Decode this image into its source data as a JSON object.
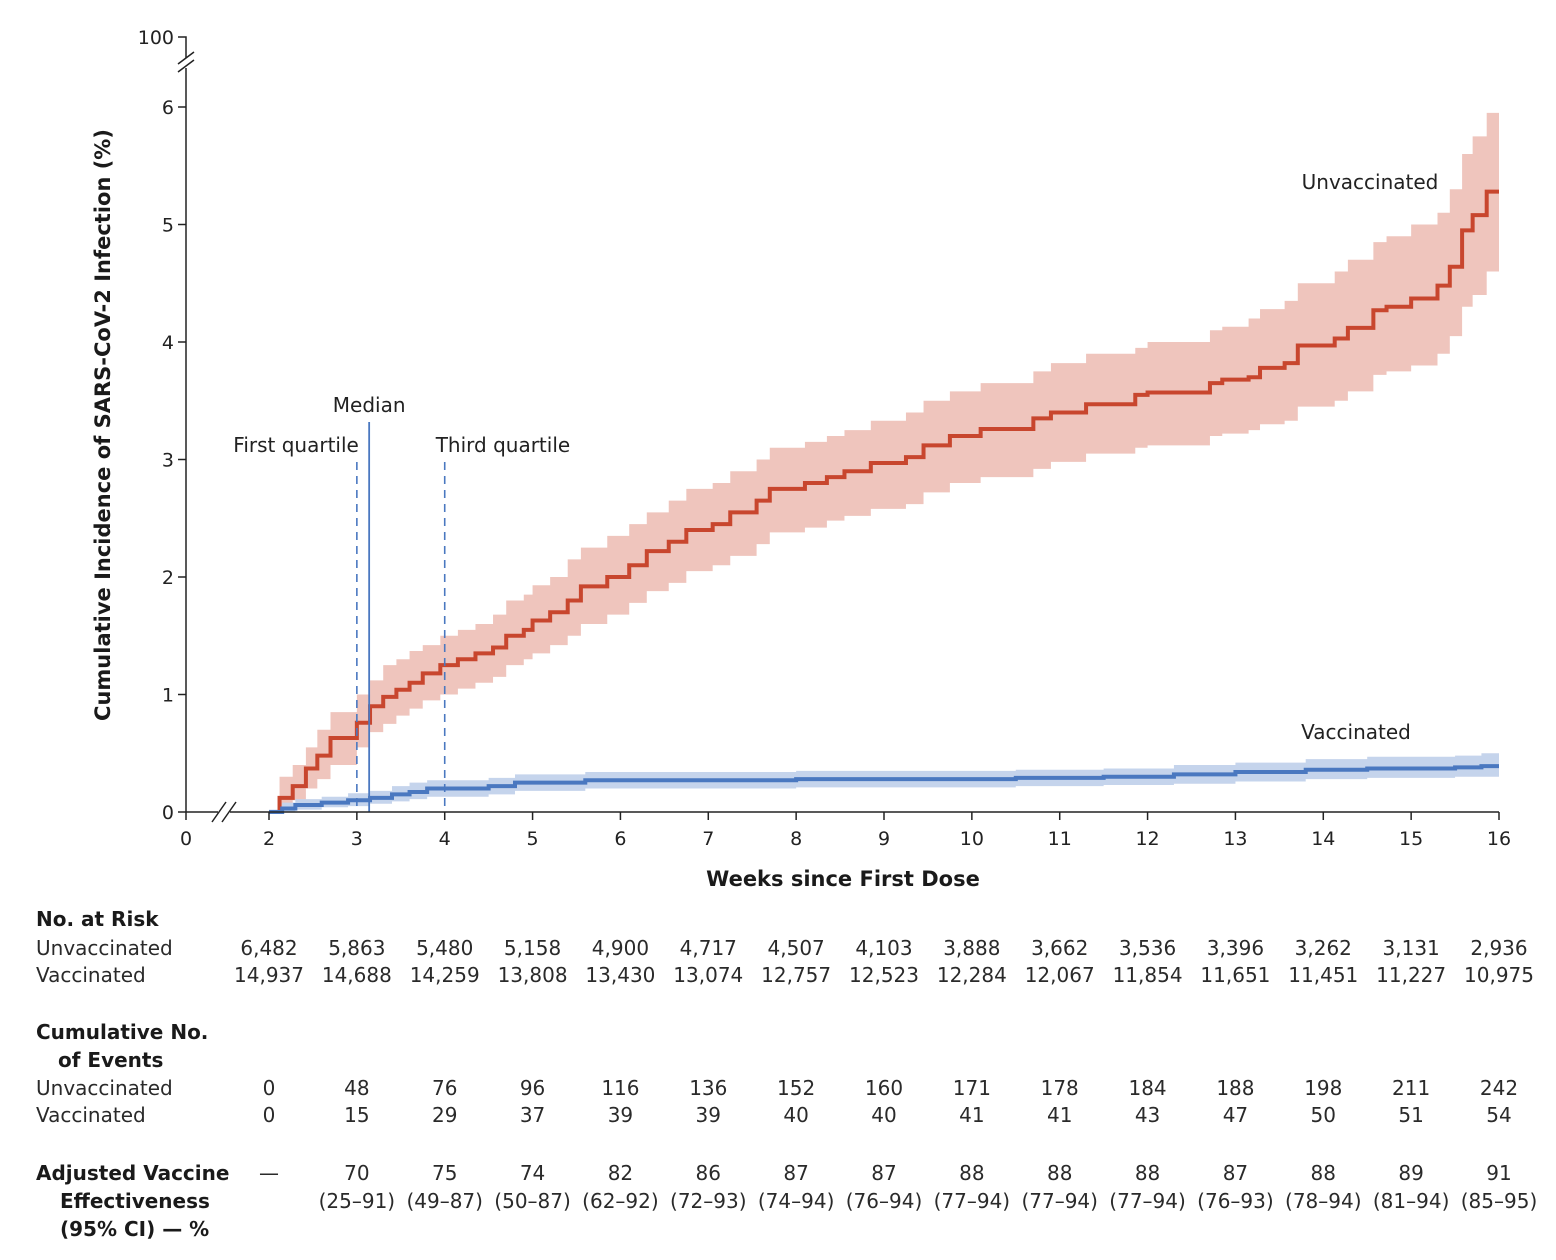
{
  "chart_data": {
    "type": "line",
    "step": true,
    "ylabel": "Cumulative Incidence of SARS-CoV-2 Infection (%)",
    "xlabel": "Weeks since First Dose",
    "x_ticks": [
      0,
      2,
      3,
      4,
      5,
      6,
      7,
      8,
      9,
      10,
      11,
      12,
      13,
      14,
      15,
      16
    ],
    "y_ticks": [
      0,
      1,
      2,
      3,
      4,
      5,
      6,
      100
    ],
    "xlim": [
      0,
      16
    ],
    "ylim": [
      0,
      6
    ],
    "axis_breaks": {
      "x": "between 0 and 2",
      "y": "between 6 and 100"
    },
    "grid": false,
    "annotations": [
      {
        "label": "First quartile",
        "x": 3.0,
        "style": "dashed"
      },
      {
        "label": "Median",
        "x": 3.14,
        "style": "solid"
      },
      {
        "label": "Third quartile",
        "x": 4.0,
        "style": "dashed"
      }
    ],
    "series": [
      {
        "name": "Unvaccinated",
        "color": "#c8462e",
        "band_color": "#efc5bd",
        "points_x_y_lower_upper": [
          [
            2.0,
            0,
            0,
            0
          ],
          [
            2.12,
            0.12,
            0.03,
            0.3
          ],
          [
            2.27,
            0.22,
            0.1,
            0.4
          ],
          [
            2.42,
            0.37,
            0.2,
            0.55
          ],
          [
            2.55,
            0.48,
            0.28,
            0.7
          ],
          [
            2.7,
            0.63,
            0.4,
            0.85
          ],
          [
            3.0,
            0.76,
            0.55,
            1.0
          ],
          [
            3.15,
            0.9,
            0.68,
            1.12
          ],
          [
            3.3,
            0.98,
            0.75,
            1.25
          ],
          [
            3.45,
            1.04,
            0.82,
            1.3
          ],
          [
            3.6,
            1.1,
            0.88,
            1.37
          ],
          [
            3.75,
            1.18,
            0.95,
            1.42
          ],
          [
            3.95,
            1.25,
            1.0,
            1.5
          ],
          [
            4.15,
            1.3,
            1.05,
            1.55
          ],
          [
            4.35,
            1.35,
            1.1,
            1.6
          ],
          [
            4.55,
            1.4,
            1.15,
            1.68
          ],
          [
            4.7,
            1.5,
            1.25,
            1.8
          ],
          [
            4.9,
            1.55,
            1.3,
            1.85
          ],
          [
            5.0,
            1.63,
            1.35,
            1.93
          ],
          [
            5.2,
            1.7,
            1.42,
            2.0
          ],
          [
            5.4,
            1.8,
            1.5,
            2.15
          ],
          [
            5.55,
            1.92,
            1.6,
            2.25
          ],
          [
            5.85,
            2.0,
            1.68,
            2.35
          ],
          [
            6.1,
            2.1,
            1.78,
            2.45
          ],
          [
            6.3,
            2.22,
            1.88,
            2.55
          ],
          [
            6.55,
            2.3,
            1.95,
            2.65
          ],
          [
            6.75,
            2.4,
            2.05,
            2.75
          ],
          [
            7.05,
            2.45,
            2.1,
            2.8
          ],
          [
            7.25,
            2.55,
            2.18,
            2.9
          ],
          [
            7.55,
            2.65,
            2.28,
            3.0
          ],
          [
            7.7,
            2.75,
            2.38,
            3.1
          ],
          [
            8.1,
            2.8,
            2.42,
            3.15
          ],
          [
            8.35,
            2.85,
            2.48,
            3.2
          ],
          [
            8.55,
            2.9,
            2.52,
            3.25
          ],
          [
            8.85,
            2.97,
            2.58,
            3.33
          ],
          [
            9.25,
            3.02,
            2.62,
            3.4
          ],
          [
            9.45,
            3.12,
            2.72,
            3.5
          ],
          [
            9.75,
            3.2,
            2.8,
            3.58
          ],
          [
            10.1,
            3.26,
            2.85,
            3.65
          ],
          [
            10.7,
            3.35,
            2.92,
            3.75
          ],
          [
            10.9,
            3.4,
            2.98,
            3.82
          ],
          [
            11.3,
            3.47,
            3.05,
            3.9
          ],
          [
            11.86,
            3.55,
            3.1,
            3.95
          ],
          [
            12.0,
            3.57,
            3.12,
            4.0
          ],
          [
            12.71,
            3.65,
            3.2,
            4.1
          ],
          [
            12.85,
            3.68,
            3.22,
            4.13
          ],
          [
            13.15,
            3.7,
            3.25,
            4.2
          ],
          [
            13.28,
            3.78,
            3.3,
            4.28
          ],
          [
            13.56,
            3.82,
            3.33,
            4.35
          ],
          [
            13.71,
            3.97,
            3.45,
            4.5
          ],
          [
            14.13,
            4.03,
            3.5,
            4.6
          ],
          [
            14.28,
            4.12,
            3.58,
            4.7
          ],
          [
            14.57,
            4.27,
            3.72,
            4.85
          ],
          [
            14.72,
            4.3,
            3.75,
            4.9
          ],
          [
            15.0,
            4.37,
            3.8,
            5.0
          ],
          [
            15.3,
            4.48,
            3.9,
            5.1
          ],
          [
            15.44,
            4.64,
            4.05,
            5.3
          ],
          [
            15.58,
            4.95,
            4.3,
            5.6
          ],
          [
            15.7,
            5.08,
            4.4,
            5.75
          ],
          [
            15.86,
            5.28,
            4.6,
            5.95
          ]
        ]
      },
      {
        "name": "Vaccinated",
        "color": "#4a78c0",
        "band_color": "#c5d4ec",
        "points_x_y_lower_upper": [
          [
            2.0,
            0,
            0,
            0.02
          ],
          [
            2.15,
            0.03,
            0,
            0.08
          ],
          [
            2.3,
            0.06,
            0.02,
            0.11
          ],
          [
            2.6,
            0.08,
            0.04,
            0.13
          ],
          [
            2.9,
            0.1,
            0.05,
            0.16
          ],
          [
            3.15,
            0.12,
            0.07,
            0.18
          ],
          [
            3.4,
            0.15,
            0.09,
            0.22
          ],
          [
            3.6,
            0.17,
            0.11,
            0.25
          ],
          [
            3.8,
            0.2,
            0.13,
            0.27
          ],
          [
            4.5,
            0.22,
            0.15,
            0.29
          ],
          [
            4.8,
            0.25,
            0.18,
            0.32
          ],
          [
            5.6,
            0.27,
            0.2,
            0.34
          ],
          [
            8.0,
            0.28,
            0.21,
            0.35
          ],
          [
            10.5,
            0.29,
            0.22,
            0.36
          ],
          [
            11.5,
            0.3,
            0.23,
            0.37
          ],
          [
            12.3,
            0.32,
            0.24,
            0.4
          ],
          [
            13.0,
            0.34,
            0.26,
            0.42
          ],
          [
            13.8,
            0.36,
            0.28,
            0.45
          ],
          [
            14.5,
            0.37,
            0.29,
            0.47
          ],
          [
            15.5,
            0.38,
            0.3,
            0.48
          ],
          [
            15.8,
            0.39,
            0.3,
            0.5
          ]
        ]
      }
    ]
  },
  "table": {
    "weeks": [
      2,
      3,
      4,
      5,
      6,
      7,
      8,
      9,
      10,
      11,
      12,
      13,
      14,
      15,
      16
    ],
    "at_risk": {
      "title": "No. at Risk",
      "rows": [
        {
          "label": "Unvaccinated",
          "values": [
            "6,482",
            "5,863",
            "5,480",
            "5,158",
            "4,900",
            "4,717",
            "4,507",
            "4,103",
            "3,888",
            "3,662",
            "3,536",
            "3,396",
            "3,262",
            "3,131",
            "2,936"
          ]
        },
        {
          "label": "Vaccinated",
          "values": [
            "14,937",
            "14,688",
            "14,259",
            "13,808",
            "13,430",
            "13,074",
            "12,757",
            "12,523",
            "12,284",
            "12,067",
            "11,854",
            "11,651",
            "11,451",
            "11,227",
            "10,975"
          ]
        }
      ]
    },
    "events": {
      "title_line1": "Cumulative No.",
      "title_line2": "of Events",
      "rows": [
        {
          "label": "Unvaccinated",
          "values": [
            "0",
            "48",
            "76",
            "96",
            "116",
            "136",
            "152",
            "160",
            "171",
            "178",
            "184",
            "188",
            "198",
            "211",
            "242"
          ]
        },
        {
          "label": "Vaccinated",
          "values": [
            "0",
            "15",
            "29",
            "37",
            "39",
            "39",
            "40",
            "40",
            "41",
            "41",
            "43",
            "47",
            "50",
            "51",
            "54"
          ]
        }
      ]
    },
    "effectiveness": {
      "title_line1": "Adjusted Vaccine",
      "title_line2": "Effectiveness",
      "title_line3": "(95% CI) — %",
      "values": [
        "—",
        "70",
        "75",
        "74",
        "82",
        "86",
        "87",
        "87",
        "88",
        "88",
        "88",
        "87",
        "88",
        "89",
        "91"
      ],
      "ci": [
        "",
        "(25–91)",
        "(49–87)",
        "(50–87)",
        "(62–92)",
        "(72–93)",
        "(74–94)",
        "(76–94)",
        "(77–94)",
        "(77–94)",
        "(77–94)",
        "(76–93)",
        "(78–94)",
        "(81–94)",
        "(85–95)"
      ]
    }
  }
}
